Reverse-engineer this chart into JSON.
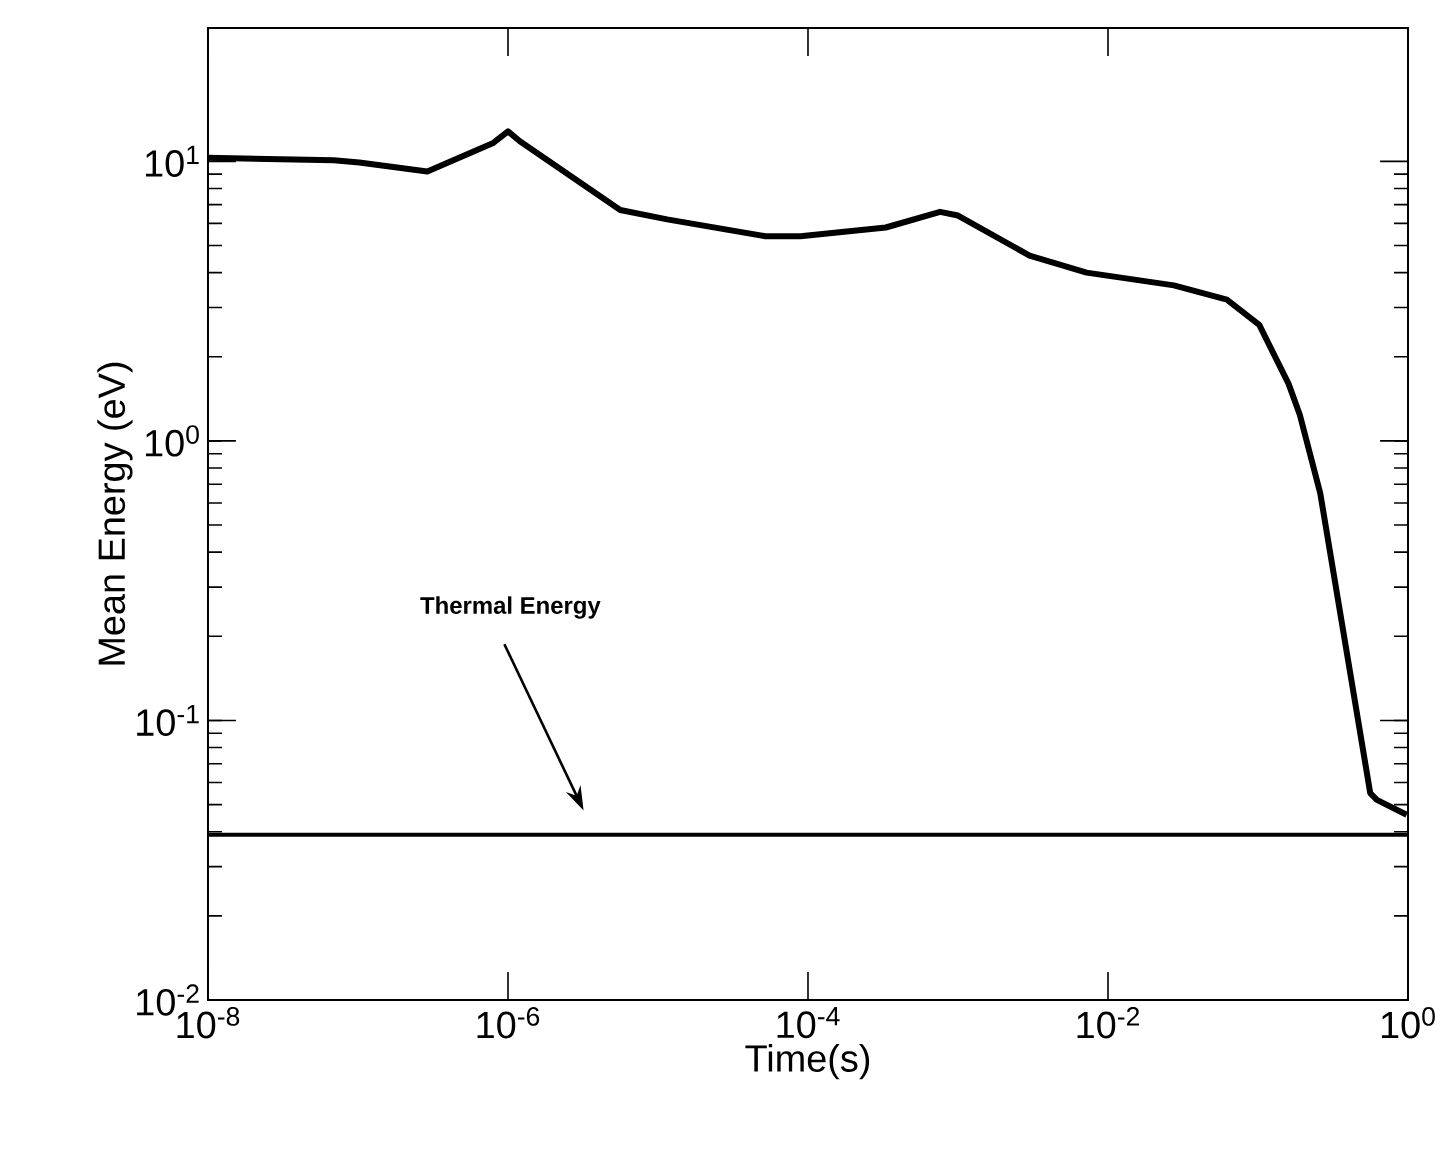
{
  "chart_data": {
    "type": "line",
    "xlabel": "Time(s)",
    "ylabel": "Mean Energy (eV)",
    "log": "xy",
    "grid": false,
    "marker": "none",
    "line_style": "solid",
    "xlim": [
      1e-08,
      1
    ],
    "ylim": [
      0.01,
      30
    ],
    "xticks": [
      {
        "value": 1e-08,
        "label": "10$^{-8}$"
      },
      {
        "value": 1e-06,
        "label": "10$^{-6}$"
      },
      {
        "value": 0.0001,
        "label": "10$^{-4}$"
      },
      {
        "value": 0.01,
        "label": "10$^{-2}$"
      },
      {
        "value": 1,
        "label": "10$^{0}$"
      }
    ],
    "yticks": [
      {
        "value": 0.01,
        "label": "10$^{-2}$"
      },
      {
        "value": 0.1,
        "label": "10$^{-1}$"
      },
      {
        "value": 1,
        "label": "10$^{0}$"
      },
      {
        "value": 10,
        "label": "10$^{1}$"
      }
    ],
    "series": [
      {
        "color": "#000000",
        "x": [
          1e-08,
          6.9e-08,
          1.02e-07,
          2.9e-07,
          7.9e-07,
          1e-06,
          1.2e-06,
          5.6e-06,
          1.15e-05,
          5.2e-05,
          8.9e-05,
          0.00033,
          0.00076,
          0.001,
          0.003,
          0.0072,
          0.0275,
          0.062,
          0.102,
          0.16,
          0.19,
          0.26,
          0.56,
          0.62,
          0.98
        ],
        "values": [
          10.3,
          10.1,
          9.9,
          9.2,
          11.6,
          12.8,
          11.8,
          6.7,
          6.2,
          5.4,
          5.4,
          5.8,
          6.6,
          6.4,
          4.6,
          4.0,
          3.6,
          3.2,
          2.6,
          1.6,
          1.24,
          0.65,
          0.055,
          0.052,
          0.046
        ]
      }
    ],
    "ref_lines": [
      {
        "axis": "y",
        "value": 0.039,
        "color": "#000000"
      }
    ],
    "annotations": [
      "Thermal Energy"
    ]
  }
}
